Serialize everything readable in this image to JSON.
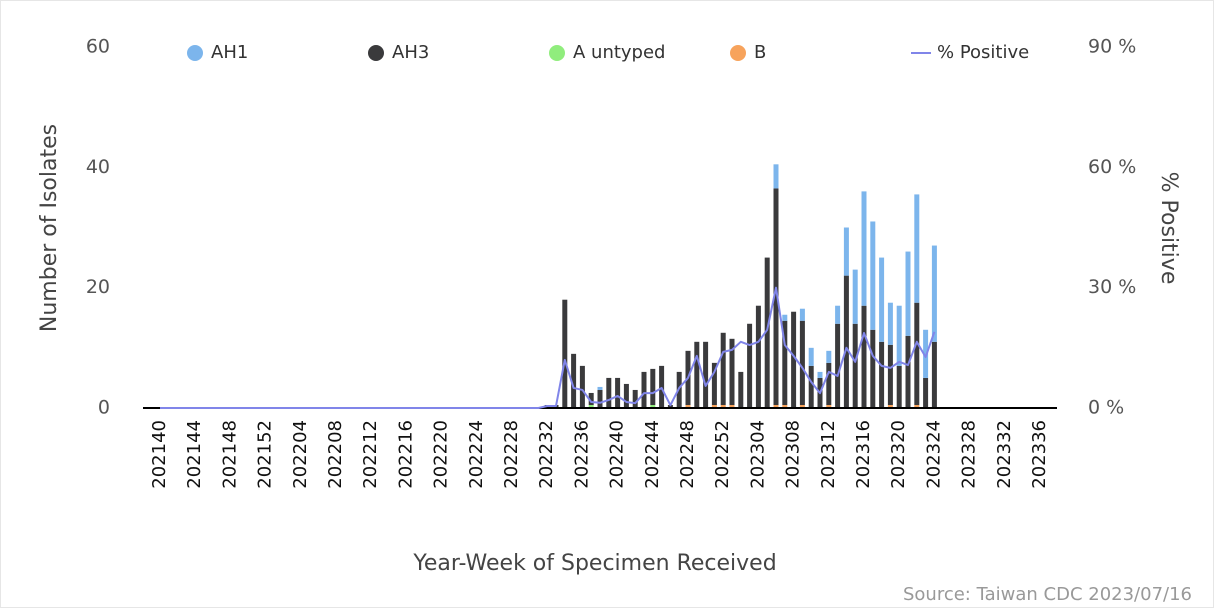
{
  "chart_data": {
    "type": "bar",
    "source": "Source: Taiwan CDC 2023/07/16",
    "x_label": "Year-Week of Specimen Received",
    "y_label": "Number of Isolates",
    "y2_label": "% Positive",
    "stacked": true,
    "legend": "top",
    "ylim": [
      0,
      60
    ],
    "yticks": [
      0,
      20,
      40,
      60
    ],
    "y2lim": [
      0,
      90
    ],
    "y2ticks": [
      {
        "value": 0,
        "label": "0 %"
      },
      {
        "value": 30,
        "label": "30 %"
      },
      {
        "value": 60,
        "label": "60 %"
      },
      {
        "value": 90,
        "label": "90 %"
      }
    ],
    "categories": [
      "202140",
      null,
      null,
      null,
      "202144",
      null,
      null,
      null,
      "202148",
      null,
      null,
      null,
      "202152",
      null,
      null,
      null,
      "202204",
      null,
      null,
      null,
      "202208",
      null,
      null,
      null,
      "202212",
      null,
      null,
      null,
      "202216",
      null,
      null,
      null,
      "202220",
      null,
      null,
      null,
      "202224",
      null,
      null,
      null,
      "202228",
      null,
      null,
      null,
      "202232",
      null,
      null,
      null,
      "202236",
      null,
      null,
      null,
      "202240",
      null,
      null,
      null,
      "202244",
      null,
      null,
      null,
      "202248",
      null,
      null,
      null,
      "202252",
      null,
      null,
      null,
      "202304",
      null,
      null,
      null,
      "202308",
      null,
      null,
      null,
      "202312",
      null,
      null,
      null,
      "202316",
      null,
      null,
      null,
      "202320",
      null,
      null,
      null,
      "202324",
      null,
      null,
      null,
      "202328",
      null,
      null,
      null,
      "202332",
      null,
      null,
      null,
      "202336",
      null
    ],
    "series": [
      {
        "name": "AH1",
        "color": "#7cb5ec",
        "values": [
          0,
          0,
          0,
          0,
          0,
          0,
          0,
          0,
          0,
          0,
          0,
          0,
          0,
          0,
          0,
          0,
          0,
          0,
          0,
          0,
          0,
          0,
          0,
          0,
          0,
          0,
          0,
          0,
          0,
          0,
          0,
          0,
          0,
          0,
          0,
          0,
          0,
          0,
          0,
          0,
          0,
          0,
          0,
          0,
          0,
          0,
          0,
          0,
          0,
          0,
          0.5,
          0,
          0,
          0,
          0,
          0,
          0,
          0,
          0,
          0,
          0,
          0,
          0,
          0,
          0,
          0,
          0,
          0,
          0,
          0,
          4,
          1,
          0,
          2,
          3,
          1,
          2,
          3,
          8,
          9,
          19,
          18,
          14,
          7,
          10,
          14,
          18,
          8,
          16,
          0,
          0,
          0,
          0,
          0,
          0,
          0,
          0,
          0,
          0,
          0,
          0,
          0
        ]
      },
      {
        "name": "AH3",
        "color": "#3a3a3c",
        "values": [
          0,
          0,
          0,
          0,
          0,
          0,
          0,
          0,
          0,
          0,
          0,
          0,
          0,
          0,
          0,
          0,
          0,
          0,
          0,
          0,
          0,
          0,
          0,
          0,
          0,
          0,
          0,
          0,
          0,
          0,
          0,
          0,
          0,
          0,
          0,
          0,
          0,
          0,
          0,
          0,
          0,
          0,
          0,
          0,
          0.5,
          0.5,
          18,
          9,
          7,
          2,
          3,
          5,
          5,
          4,
          3,
          6,
          6,
          7,
          0.5,
          6,
          9,
          11,
          11,
          7,
          12,
          11,
          6,
          14,
          17,
          25,
          36,
          14,
          16,
          14,
          7,
          5,
          7,
          14,
          22,
          14,
          17,
          13,
          11,
          10,
          7,
          12,
          17,
          5,
          11,
          0,
          0,
          0,
          0,
          0,
          0,
          0,
          0,
          0,
          0,
          0,
          0,
          0
        ]
      },
      {
        "name": "A untyped",
        "color": "#90ed7d",
        "values": [
          0,
          0,
          0,
          0,
          0,
          0,
          0,
          0,
          0,
          0,
          0,
          0,
          0,
          0,
          0,
          0,
          0,
          0,
          0,
          0,
          0,
          0,
          0,
          0,
          0,
          0,
          0,
          0,
          0,
          0,
          0,
          0,
          0,
          0,
          0,
          0,
          0,
          0,
          0,
          0,
          0,
          0,
          0,
          0,
          0,
          0,
          0,
          0,
          0,
          0.5,
          0,
          0,
          0,
          0,
          0,
          0,
          0.5,
          0,
          0,
          0,
          0,
          0,
          0,
          0,
          0,
          0,
          0,
          0,
          0,
          0,
          0,
          0,
          0,
          0,
          0,
          0,
          0,
          0,
          0,
          0,
          0,
          0,
          0,
          0,
          0,
          0,
          0,
          0,
          0,
          0,
          0,
          0,
          0,
          0,
          0,
          0,
          0,
          0,
          0,
          0,
          0,
          0
        ]
      },
      {
        "name": "B",
        "color": "#f7a35c",
        "values": [
          0,
          0,
          0,
          0,
          0,
          0,
          0,
          0,
          0,
          0,
          0,
          0,
          0,
          0,
          0,
          0,
          0,
          0,
          0,
          0,
          0,
          0,
          0,
          0,
          0,
          0,
          0,
          0,
          0,
          0,
          0,
          0,
          0,
          0,
          0,
          0,
          0,
          0,
          0,
          0,
          0,
          0,
          0,
          0,
          0,
          0,
          0,
          0,
          0,
          0,
          0,
          0,
          0,
          0,
          0,
          0,
          0,
          0,
          0,
          0,
          0.5,
          0,
          0,
          0.5,
          0.5,
          0.5,
          0,
          0,
          0,
          0,
          0.5,
          0.5,
          0,
          0.5,
          0,
          0,
          0.5,
          0,
          0,
          0,
          0,
          0,
          0,
          0.5,
          0,
          0,
          0.5,
          0,
          0,
          0,
          0,
          0,
          0,
          0,
          0,
          0,
          0,
          0,
          0,
          0,
          0,
          0
        ]
      },
      {
        "name": "% Positive",
        "type": "line",
        "axis": "y2",
        "color": "#8085e9",
        "values": [
          0,
          0,
          0,
          0,
          0,
          0,
          0,
          0,
          0,
          0,
          0,
          0,
          0,
          0,
          0,
          0,
          0,
          0,
          0,
          0,
          0,
          0,
          0,
          0,
          0,
          0,
          0,
          0,
          0,
          0,
          0,
          0,
          0,
          0,
          0,
          0,
          0,
          0,
          0,
          0,
          0,
          0,
          0,
          0,
          0.5,
          0.5,
          12,
          5,
          4.5,
          1.5,
          1.3,
          2,
          3,
          1.5,
          1.2,
          3.7,
          3.7,
          5,
          0.7,
          5,
          7.5,
          13,
          5.5,
          9,
          14,
          14.5,
          16.5,
          15.7,
          16.5,
          19.5,
          30,
          15.7,
          13,
          10,
          6.5,
          3.7,
          9,
          8,
          15,
          11.5,
          18.7,
          13,
          10.5,
          10,
          11.5,
          10.7,
          16.5,
          12.7,
          19,
          null,
          null,
          null,
          null,
          null,
          null,
          null,
          null,
          null,
          null,
          null,
          null,
          null
        ]
      }
    ]
  }
}
